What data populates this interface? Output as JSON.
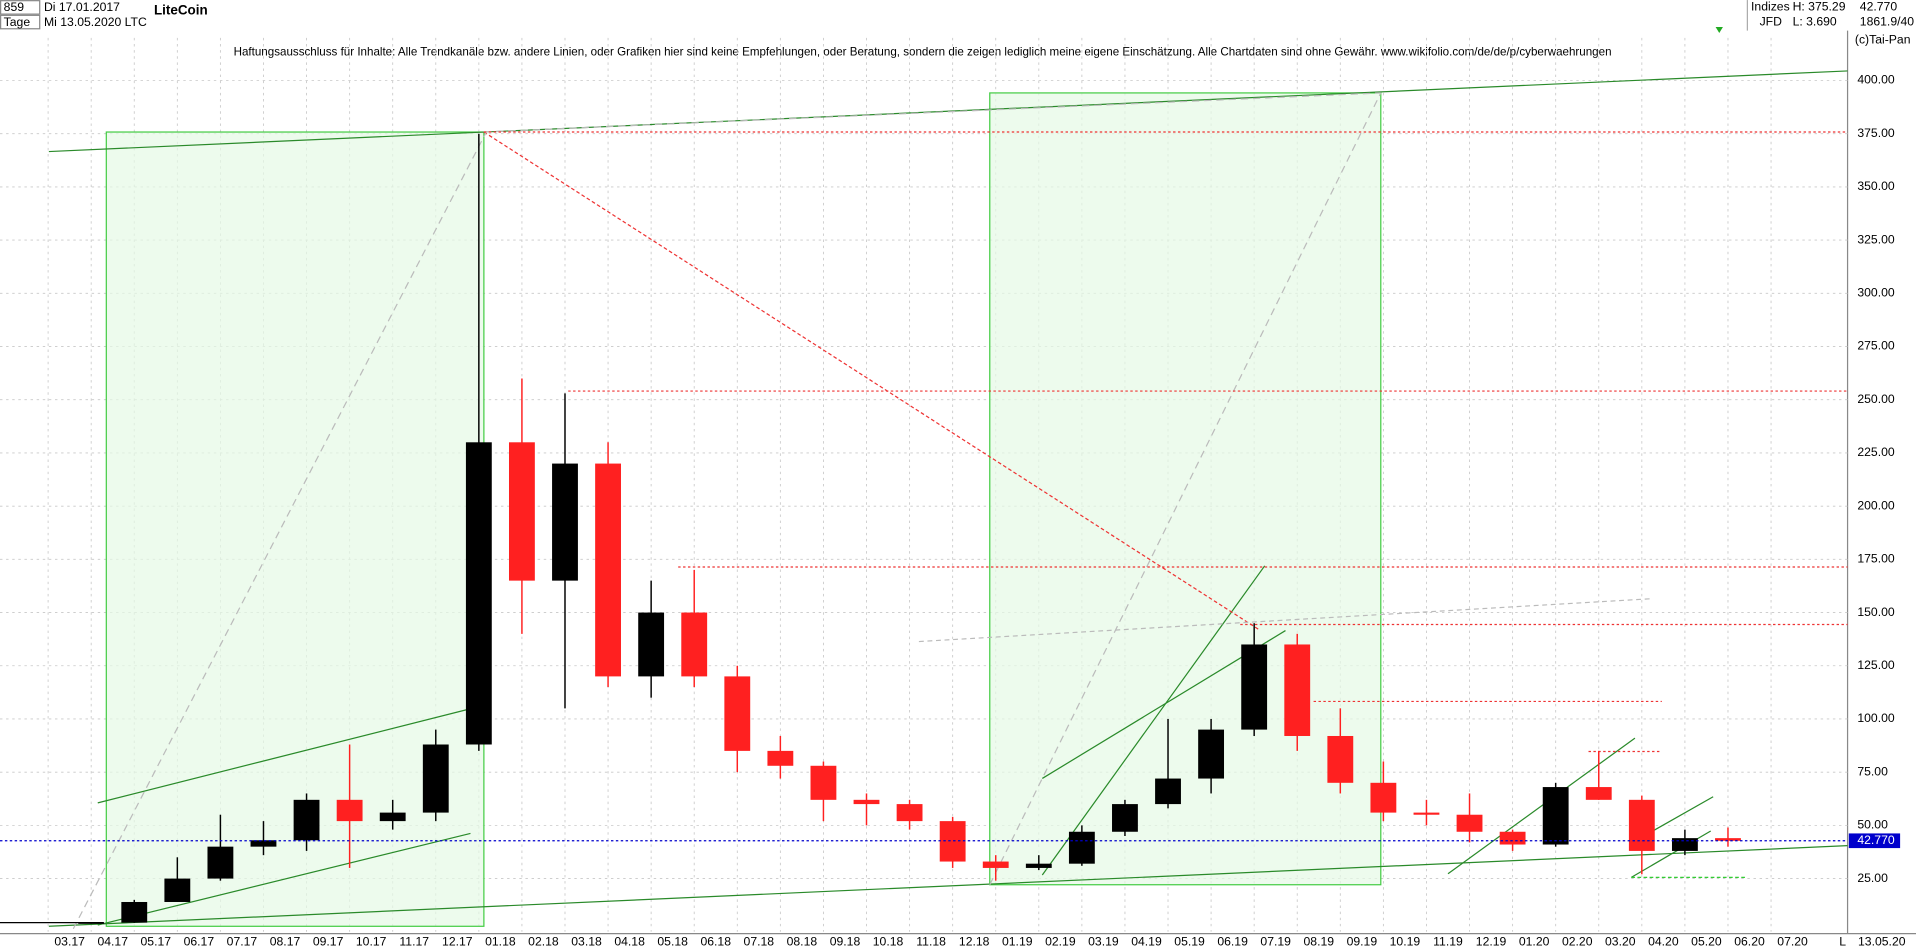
{
  "header": {
    "id": "859",
    "start_date": "Di 17.01.2017",
    "period": "Tage",
    "end_date": "Mi 13.05.2020",
    "symbol": "LTC",
    "market": "Indizes",
    "source": "JFD",
    "high": "H: 375.29",
    "low": "L: 3.690",
    "last_price": "42.770",
    "info": "1861.9/40",
    "copyright": "(c)Tai-Pan",
    "disclaimer": "Haftungsausschluss für Inhalte: Alle Trendkanäle bzw. andere Linien, oder Grafiken hier sind keine Empfehlungen, oder Beratung, sondern die zeigen lediglich meine eigene Einschätzung. Alle Chartdaten sind ohne Gewähr.  www.wikifolio.com/de/de/p/cyberwaehrungen",
    "cursor_date": "13.05.20",
    "scale_mode": "L"
  },
  "chart_data": {
    "type": "candlestick",
    "title": "LiteCoin",
    "categories": [
      "03.17",
      "04.17",
      "05.17",
      "06.17",
      "07.17",
      "08.17",
      "09.17",
      "10.17",
      "11.17",
      "12.17",
      "01.18",
      "02.18",
      "03.18",
      "04.18",
      "05.18",
      "06.18",
      "07.18",
      "08.18",
      "09.18",
      "10.18",
      "11.18",
      "12.18",
      "01.19",
      "02.19",
      "03.19",
      "04.19",
      "05.19",
      "06.19",
      "07.19",
      "08.19",
      "09.19",
      "10.19",
      "11.19",
      "12.19",
      "01.20",
      "02.20",
      "03.20",
      "04.20",
      "05.20",
      "06.20",
      "07.20"
    ],
    "open": [
      4,
      4.3,
      14,
      25,
      40,
      43,
      62,
      52,
      56,
      88,
      230,
      165,
      220,
      120,
      150,
      120,
      85,
      78,
      62,
      60,
      52,
      33,
      30,
      32,
      47,
      60,
      72,
      95,
      135,
      92,
      70,
      56,
      55,
      47,
      41,
      68,
      62,
      38,
      44,
      null,
      null
    ],
    "high": [
      4.5,
      15,
      35,
      55,
      52,
      65,
      88,
      62,
      95,
      375,
      260,
      253,
      230,
      165,
      170,
      125,
      92,
      80,
      65,
      62,
      54,
      36,
      36,
      50,
      62,
      100,
      100,
      145,
      140,
      105,
      80,
      62,
      65,
      48,
      70,
      85,
      64,
      48,
      49,
      null,
      null
    ],
    "low": [
      3.8,
      4.2,
      14,
      24,
      36,
      38,
      30,
      48,
      52,
      85,
      140,
      105,
      115,
      110,
      115,
      75,
      72,
      52,
      50,
      48,
      30,
      24,
      29,
      31,
      45,
      58,
      65,
      92,
      85,
      65,
      52,
      50,
      42,
      38,
      40,
      62,
      27,
      36,
      40,
      null,
      null
    ],
    "close": [
      4.3,
      14,
      25,
      40,
      43,
      62,
      52,
      56,
      88,
      230,
      165,
      220,
      120,
      150,
      120,
      85,
      78,
      62,
      60,
      52,
      33,
      30,
      32,
      47,
      60,
      72,
      95,
      135,
      92,
      70,
      56,
      55,
      47,
      41,
      68,
      62,
      38,
      44,
      42.77,
      null,
      null
    ],
    "up_color": "#000000",
    "down_color": "#ff2020",
    "last": {
      "value": 42.77,
      "label": "42.770"
    },
    "last_color": "#0000cc",
    "ylim": [
      0,
      420
    ],
    "yticks": [
      {
        "value": 25,
        "label": "25.00"
      },
      {
        "value": 50,
        "label": "50.00"
      },
      {
        "value": 75,
        "label": "75.00"
      },
      {
        "value": 100,
        "label": "100.00"
      },
      {
        "value": 125,
        "label": "125.00"
      },
      {
        "value": 150,
        "label": "150.00"
      },
      {
        "value": 175,
        "label": "175.00"
      },
      {
        "value": 200,
        "label": "200.00"
      },
      {
        "value": 225,
        "label": "225.00"
      },
      {
        "value": 250,
        "label": "250.00"
      },
      {
        "value": 275,
        "label": "275.00"
      },
      {
        "value": 300,
        "label": "300.00"
      },
      {
        "value": 325,
        "label": "325.00"
      },
      {
        "value": 350,
        "label": "350.00"
      },
      {
        "value": 375,
        "label": "375.00"
      },
      {
        "value": 400,
        "label": "400.00"
      }
    ],
    "grid": true
  }
}
